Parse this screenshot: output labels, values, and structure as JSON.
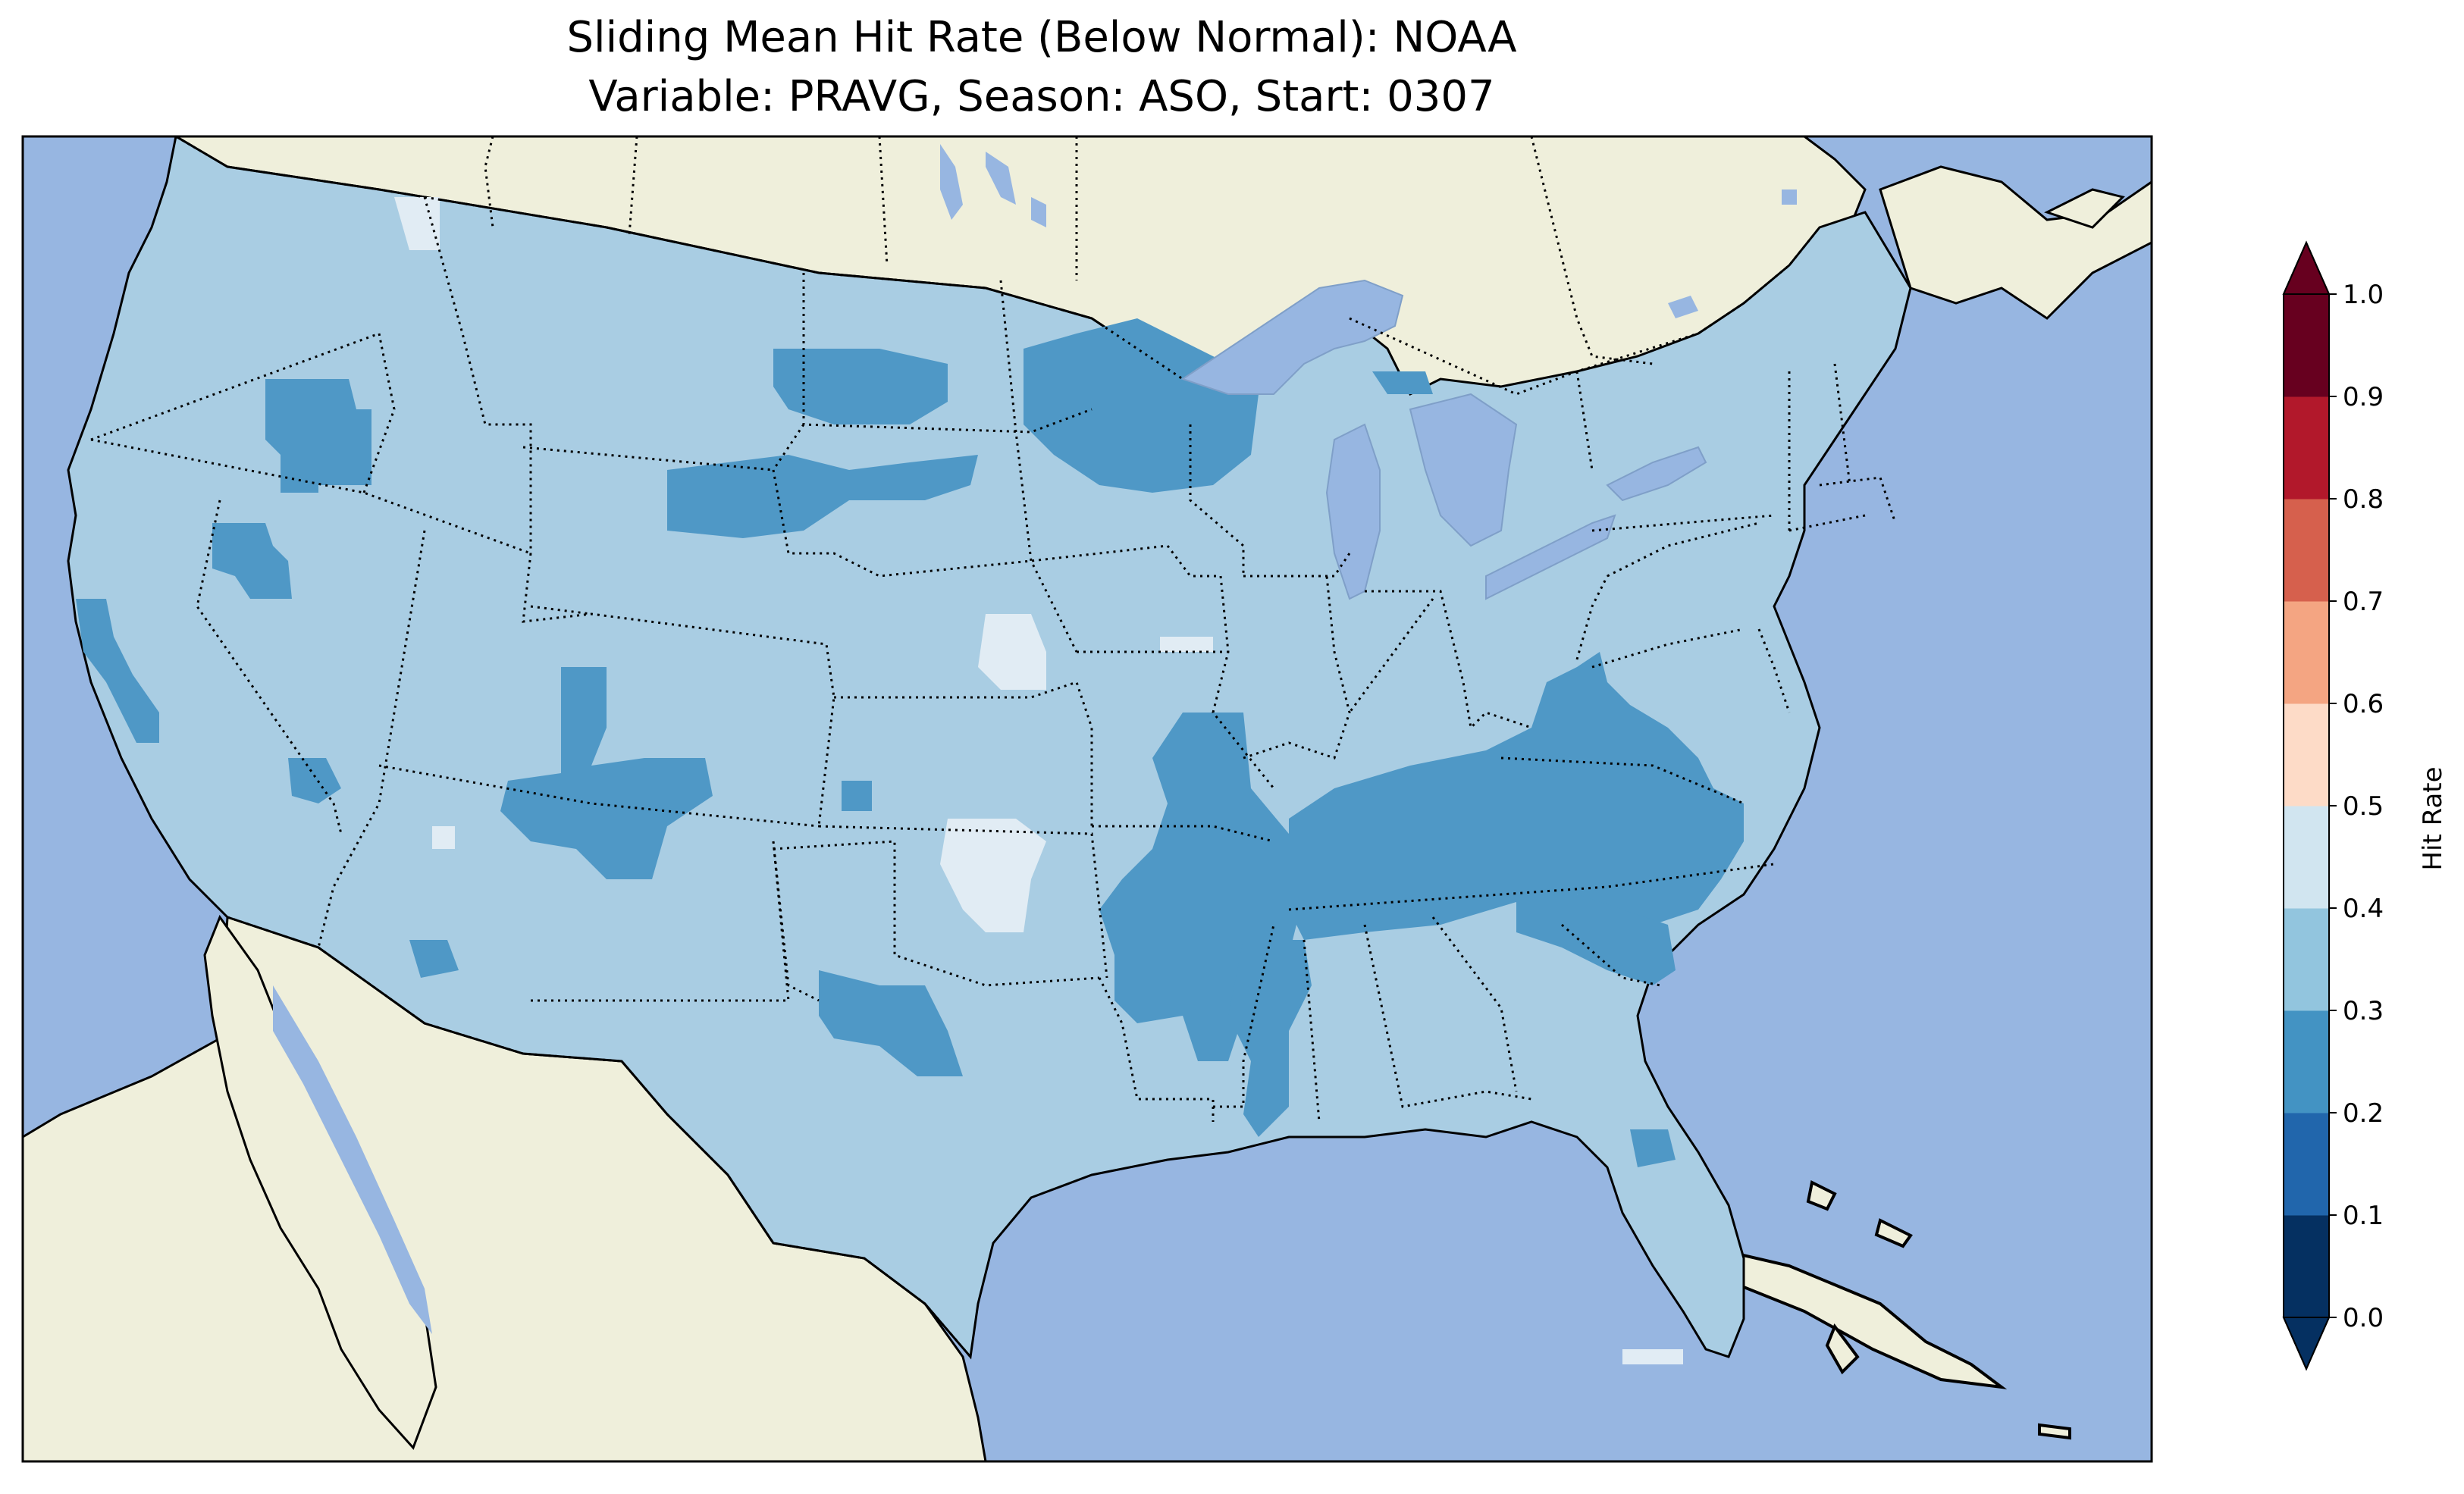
{
  "figure": {
    "title_line1": "Sliding Mean Hit Rate (Below Normal): NOAA",
    "title_line2": "Variable: PRAVG, Season: ASO, Start: 0307"
  },
  "map": {
    "ocean_color": "#97b6e1",
    "land_color": "#efefdb",
    "lake_color": "#97b6e1"
  },
  "colorbar": {
    "label": "Hit Rate",
    "ticks": [
      "0.0",
      "0.1",
      "0.2",
      "0.3",
      "0.4",
      "0.5",
      "0.6",
      "0.7",
      "0.8",
      "0.9",
      "1.0"
    ],
    "colors": [
      "#053061",
      "#2166ac",
      "#4393c3",
      "#92c5de",
      "#d1e5f0",
      "#fddbc7",
      "#f4a582",
      "#d6604d",
      "#b2182b",
      "#67001f"
    ],
    "extend_under_color": "#053061",
    "extend_over_color": "#67001f"
  },
  "hit_rate_colors": {
    "bin_0_2_0_3": "#4f98c6",
    "bin_0_3_0_4": "#a9cde3",
    "bin_0_4_0_5": "#e1ecf4"
  }
}
